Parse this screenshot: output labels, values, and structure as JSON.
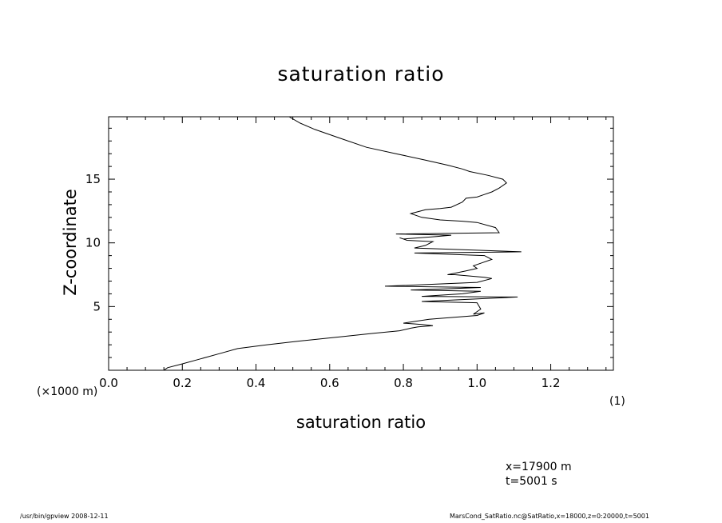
{
  "chart_data": {
    "type": "line",
    "title": "saturation ratio",
    "xlabel": "saturation ratio",
    "ylabel": "Z-coordinate",
    "x_unit_label": "(1)",
    "y_unit_label": "(×1000 m)",
    "xlim": [
      0.0,
      1.37
    ],
    "ylim": [
      0.0,
      19.9
    ],
    "xticks": [
      0.0,
      0.2,
      0.4,
      0.6,
      0.8,
      1.0,
      1.2
    ],
    "xtick_labels": [
      "0.0",
      "0.2",
      "0.4",
      "0.6",
      "0.8",
      "1.0",
      "1.2"
    ],
    "yticks": [
      5,
      10,
      15
    ],
    "ytick_labels": [
      "5",
      "10",
      "15"
    ],
    "grid": false,
    "series": [
      {
        "x": [
          0.15,
          0.16,
          0.2,
          0.25,
          0.3,
          0.35,
          0.43,
          0.52,
          0.62,
          0.72,
          0.79,
          0.82,
          0.84,
          0.88,
          0.85,
          0.8,
          0.87,
          1.0,
          1.02,
          0.99,
          1.01,
          1.0,
          0.85,
          0.96,
          1.11,
          0.85,
          0.96,
          1.01,
          0.82,
          0.92,
          1.01,
          0.75,
          1.0,
          1.04,
          1.02,
          0.94,
          0.92,
          0.97,
          1.0,
          0.99,
          1.01,
          1.04,
          1.02,
          0.83,
          1.12,
          0.83,
          0.86,
          0.88,
          0.81,
          0.79,
          0.8,
          0.89,
          0.93,
          0.78,
          1.06,
          1.05,
          1.0,
          0.96,
          0.9,
          0.85,
          0.82,
          0.86,
          0.9,
          0.93,
          0.96,
          0.97,
          1.0,
          1.02,
          1.04,
          1.06,
          1.08,
          1.07,
          1.03,
          0.98,
          0.96,
          0.92,
          0.86,
          0.78,
          0.7,
          0.63,
          0.56,
          0.52,
          0.49
        ],
        "y": [
          0.0,
          0.2,
          0.5,
          0.9,
          1.3,
          1.7,
          2.0,
          2.3,
          2.6,
          2.9,
          3.1,
          3.3,
          3.4,
          3.5,
          3.6,
          3.7,
          4.0,
          4.3,
          4.5,
          4.4,
          4.8,
          5.3,
          5.4,
          5.55,
          5.75,
          5.8,
          6.0,
          6.2,
          6.3,
          6.4,
          6.5,
          6.6,
          6.9,
          7.2,
          7.3,
          7.5,
          7.5,
          7.8,
          8.0,
          8.2,
          8.4,
          8.7,
          9.0,
          9.2,
          9.3,
          9.6,
          9.8,
          10.1,
          10.2,
          10.4,
          10.3,
          10.5,
          10.6,
          10.7,
          10.8,
          11.2,
          11.6,
          11.7,
          11.8,
          12.0,
          12.3,
          12.6,
          12.7,
          12.8,
          13.2,
          13.5,
          13.6,
          13.8,
          14.0,
          14.3,
          14.7,
          15.0,
          15.3,
          15.6,
          15.8,
          16.1,
          16.5,
          17.0,
          17.5,
          18.2,
          18.9,
          19.4,
          19.9
        ]
      }
    ]
  },
  "annotations": {
    "x_position": "x=17900  m",
    "time": "t=5001  s"
  },
  "footer": {
    "left": "/usr/bin/gpview    2008-12-11",
    "right": "MarsCond_SatRatio.nc@SatRatio,x=18000,z=0:20000,t=5001"
  }
}
